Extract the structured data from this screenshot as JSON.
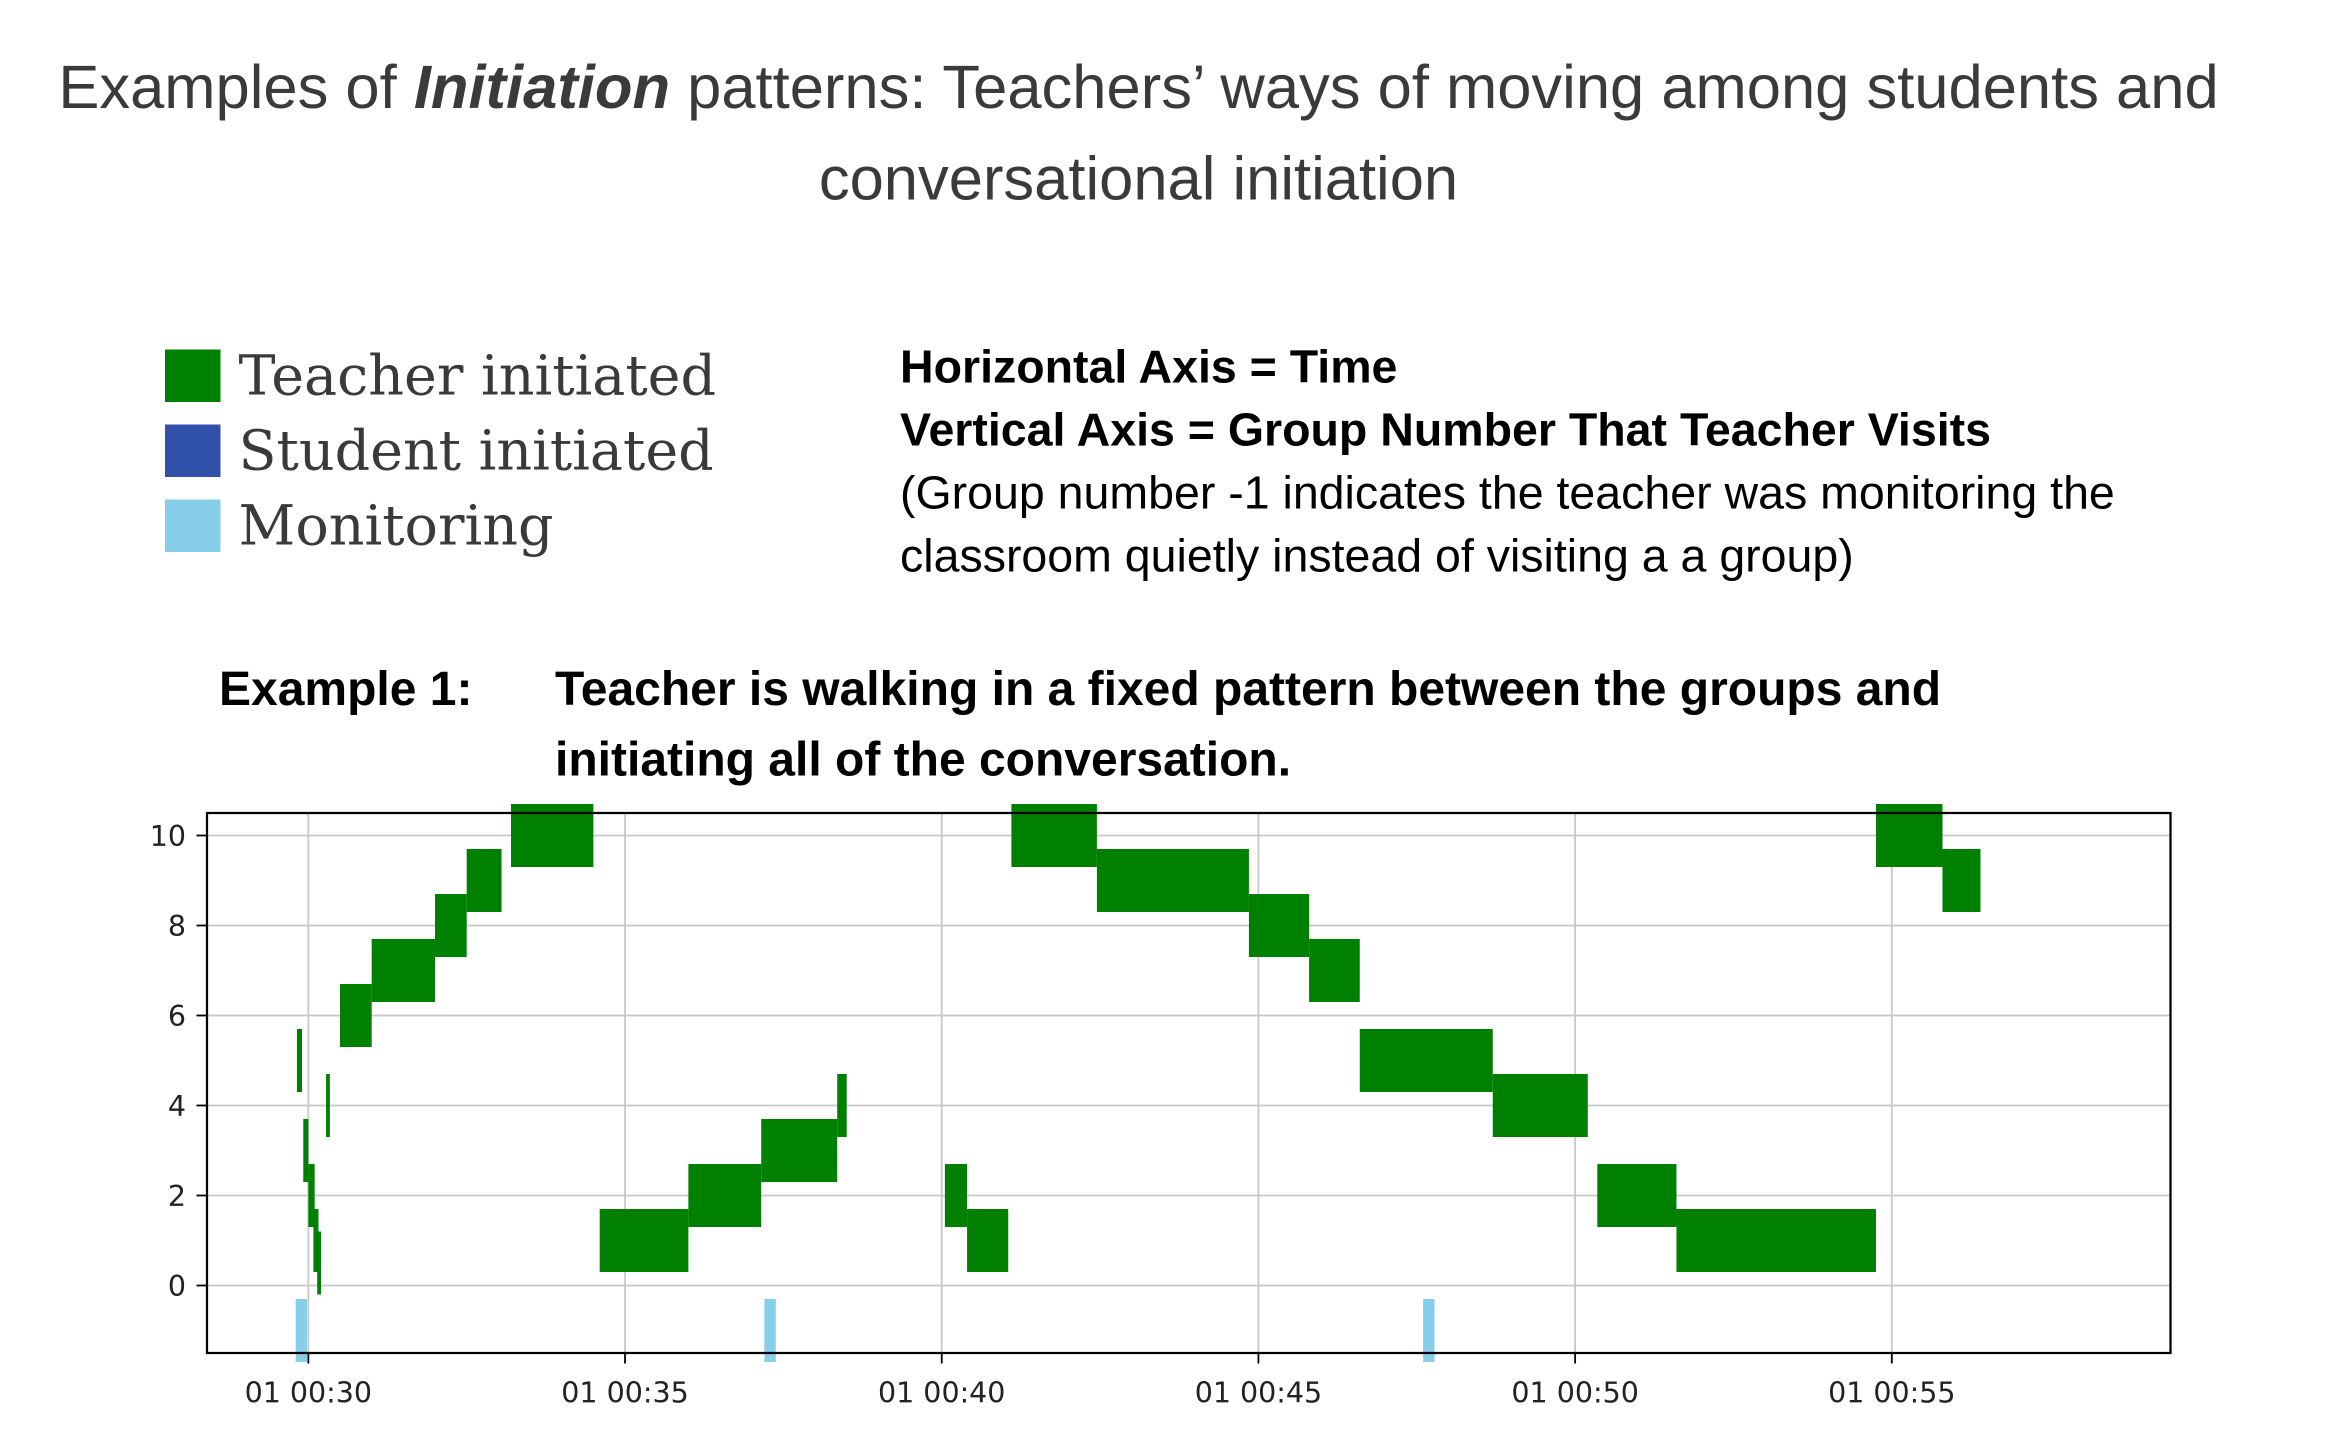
{
  "title": {
    "prefix": "Examples of ",
    "emph": "Initiation",
    "suffix": " patterns: Teachers’ ways of moving among students and conversational initiation"
  },
  "legend": [
    {
      "label": "Teacher initiated",
      "color": "#008000",
      "icon": "green-square"
    },
    {
      "label": "Student initiated",
      "color": "#3050aa",
      "icon": "blue-square"
    },
    {
      "label": "Monitoring",
      "color": "#87ceeb",
      "icon": "light-blue-square"
    }
  ],
  "axis_info": {
    "line1": "Horizontal Axis = Time",
    "line2": "Vertical Axis = Group Number That Teacher Visits",
    "line3": "(Group number -1 indicates the teacher was monitoring the classroom quietly instead of visiting a a group)"
  },
  "example": {
    "label": "Example 1:",
    "description": "Teacher is walking in a fixed pattern between the groups and initiating all of the conversation."
  },
  "chart_data": {
    "type": "bar",
    "orientation": "horizontal-timeline",
    "xlabel": "",
    "ylabel": "",
    "x_unit": "minutes",
    "xlim": [
      28.4,
      59.4
    ],
    "ylim": [
      -1.5,
      10.5
    ],
    "xticks": [
      30,
      35,
      40,
      45,
      50,
      55
    ],
    "xtick_labels": [
      "01 00:30",
      "01 00:35",
      "01 00:40",
      "01 00:45",
      "01 00:50",
      "01 00:55"
    ],
    "yticks": [
      0,
      2,
      4,
      6,
      8,
      10
    ],
    "grid": true,
    "bar_height": 1.4,
    "series": [
      {
        "name": "Teacher initiated",
        "color": "#008000",
        "segments": [
          {
            "group": 5,
            "start": 29.82,
            "end": 29.9
          },
          {
            "group": 3,
            "start": 29.92,
            "end": 30.0
          },
          {
            "group": 2,
            "start": 30.0,
            "end": 30.1
          },
          {
            "group": 1,
            "start": 30.08,
            "end": 30.16
          },
          {
            "group": 0.5,
            "start": 30.14,
            "end": 30.2
          },
          {
            "group": 4,
            "start": 30.28,
            "end": 30.34
          },
          {
            "group": 6,
            "start": 30.5,
            "end": 31.0
          },
          {
            "group": 7,
            "start": 31.0,
            "end": 32.0
          },
          {
            "group": 8,
            "start": 32.0,
            "end": 32.5
          },
          {
            "group": 9,
            "start": 32.5,
            "end": 33.05
          },
          {
            "group": 10,
            "start": 33.2,
            "end": 34.5
          },
          {
            "group": 1,
            "start": 34.6,
            "end": 36.0
          },
          {
            "group": 2,
            "start": 36.0,
            "end": 37.15
          },
          {
            "group": 3,
            "start": 37.15,
            "end": 38.35
          },
          {
            "group": 4,
            "start": 38.35,
            "end": 38.5
          },
          {
            "group": 2,
            "start": 40.05,
            "end": 40.4
          },
          {
            "group": 1,
            "start": 40.4,
            "end": 41.05
          },
          {
            "group": 10,
            "start": 41.1,
            "end": 42.45
          },
          {
            "group": 9,
            "start": 42.45,
            "end": 44.85
          },
          {
            "group": 8,
            "start": 44.85,
            "end": 45.8
          },
          {
            "group": 7,
            "start": 45.8,
            "end": 46.6
          },
          {
            "group": 5,
            "start": 46.6,
            "end": 48.7
          },
          {
            "group": 4,
            "start": 48.7,
            "end": 50.2
          },
          {
            "group": 2,
            "start": 50.35,
            "end": 51.6
          },
          {
            "group": 1,
            "start": 51.6,
            "end": 54.75
          },
          {
            "group": 10,
            "start": 54.75,
            "end": 55.8
          },
          {
            "group": 9,
            "start": 55.8,
            "end": 56.4
          }
        ]
      },
      {
        "name": "Student initiated",
        "color": "#3050aa",
        "segments": []
      },
      {
        "name": "Monitoring",
        "color": "#87ceeb",
        "segments": [
          {
            "group": -1,
            "start": 29.8,
            "end": 29.98
          },
          {
            "group": -1,
            "start": 37.2,
            "end": 37.38
          },
          {
            "group": -1,
            "start": 47.6,
            "end": 47.78
          }
        ]
      }
    ]
  }
}
